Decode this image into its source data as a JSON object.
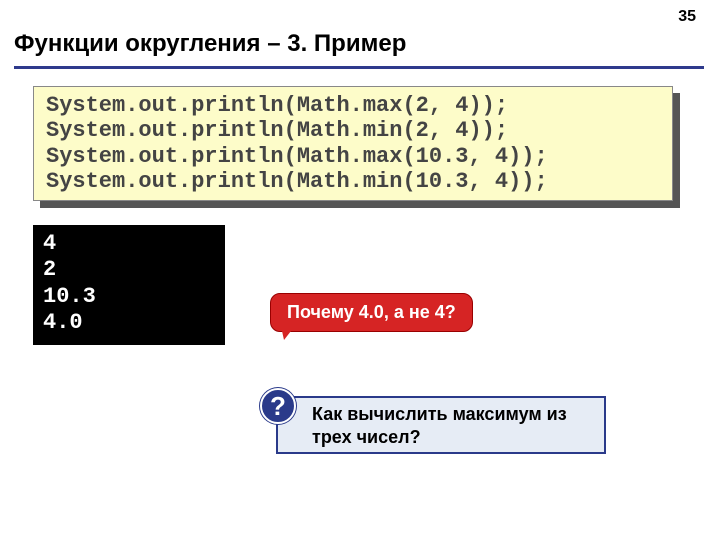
{
  "page_number": "35",
  "title": "Функции округления – 3. Пример",
  "code_lines": [
    "System.out.println(Math.max(2, 4));",
    "System.out.println(Math.min(2, 4));",
    "System.out.println(Math.max(10.3, 4));",
    "System.out.println(Math.min(10.3, 4));"
  ],
  "output_lines": [
    "4",
    "2",
    "10.3",
    "4.0"
  ],
  "red_callout": "Почему 4.0, а не 4?",
  "question_mark": "?",
  "question_text": "Как вычислить максимум из трех чисел?",
  "colors": {
    "underline": "#2e3a8c",
    "code_bg": "#fdfcc9",
    "output_bg": "#000000",
    "output_fg": "#ffffff",
    "callout_bg": "#d62424",
    "q_box_bg": "#e6ecf5",
    "q_box_border": "#2a3a8a"
  }
}
